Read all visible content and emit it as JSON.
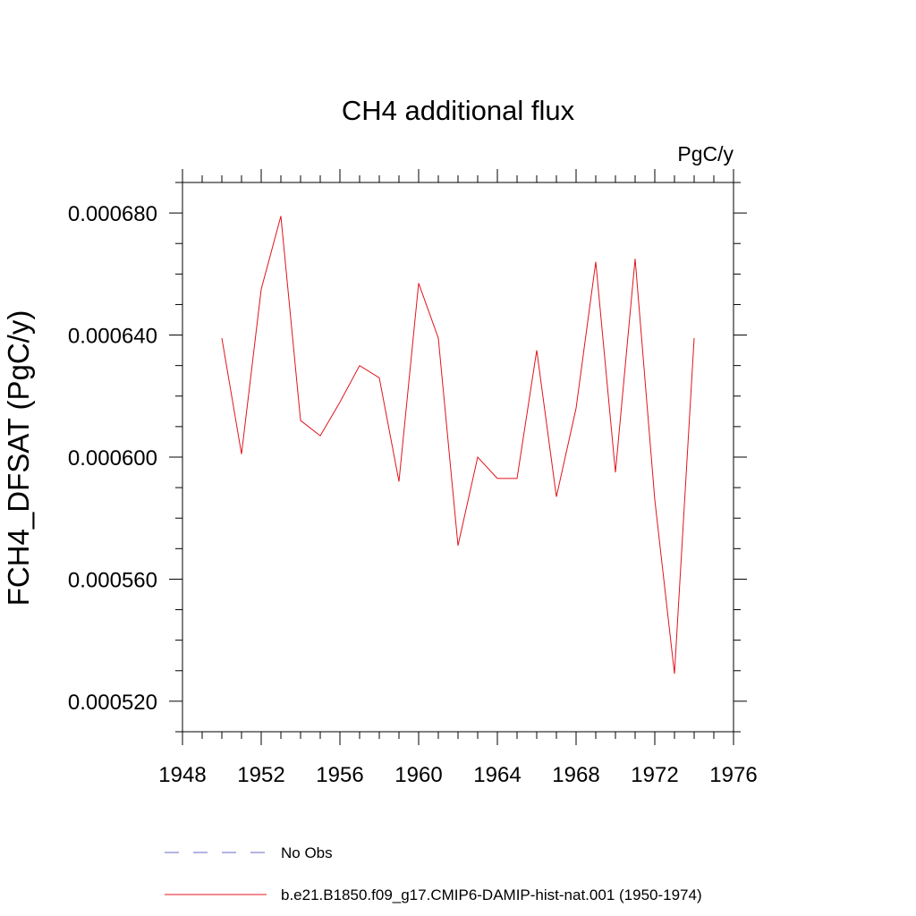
{
  "chart_data": {
    "type": "line",
    "title": "CH4 additional flux",
    "units_label": "PgC/y",
    "xlabel": "",
    "ylabel": "FCH4_DFSAT  (PgC/y)",
    "xlim": [
      1948,
      1976
    ],
    "ylim": [
      0.00051,
      0.00069
    ],
    "x_ticks": [
      1948,
      1952,
      1956,
      1960,
      1964,
      1968,
      1972,
      1976
    ],
    "x_tick_labels": [
      "1948",
      "1952",
      "1956",
      "1960",
      "1964",
      "1968",
      "1972",
      "1976"
    ],
    "y_ticks": [
      0.00052,
      0.00056,
      0.0006,
      0.00064,
      0.00068
    ],
    "y_tick_labels": [
      "0.000520",
      "0.000560",
      "0.000600",
      "0.000640",
      "0.000680"
    ],
    "grid": false,
    "legend_position": "bottom",
    "legend": [
      {
        "label": "No Obs",
        "color": "#6a6ac8",
        "style": "dashed"
      },
      {
        "label": "b.e21.B1850.f09_g17.CMIP6-DAMIP-hist-nat.001 (1950-1974)",
        "color": "#e0141c",
        "style": "solid"
      }
    ],
    "series": [
      {
        "name": "b.e21.B1850.f09_g17.CMIP6-DAMIP-hist-nat.001 (1950-1974)",
        "color": "#e0141c",
        "x": [
          1950,
          1951,
          1952,
          1953,
          1954,
          1955,
          1956,
          1957,
          1958,
          1959,
          1960,
          1961,
          1962,
          1963,
          1964,
          1965,
          1966,
          1967,
          1968,
          1969,
          1970,
          1971,
          1972,
          1973,
          1974
        ],
        "y": [
          0.000639,
          0.000601,
          0.000655,
          0.000679,
          0.000612,
          0.000607,
          0.000618,
          0.00063,
          0.000626,
          0.000592,
          0.000657,
          0.000639,
          0.000571,
          0.0006,
          0.000593,
          0.000593,
          0.000635,
          0.000587,
          0.000616,
          0.000664,
          0.000595,
          0.000665,
          0.000586,
          0.000529,
          0.000639
        ]
      }
    ]
  }
}
